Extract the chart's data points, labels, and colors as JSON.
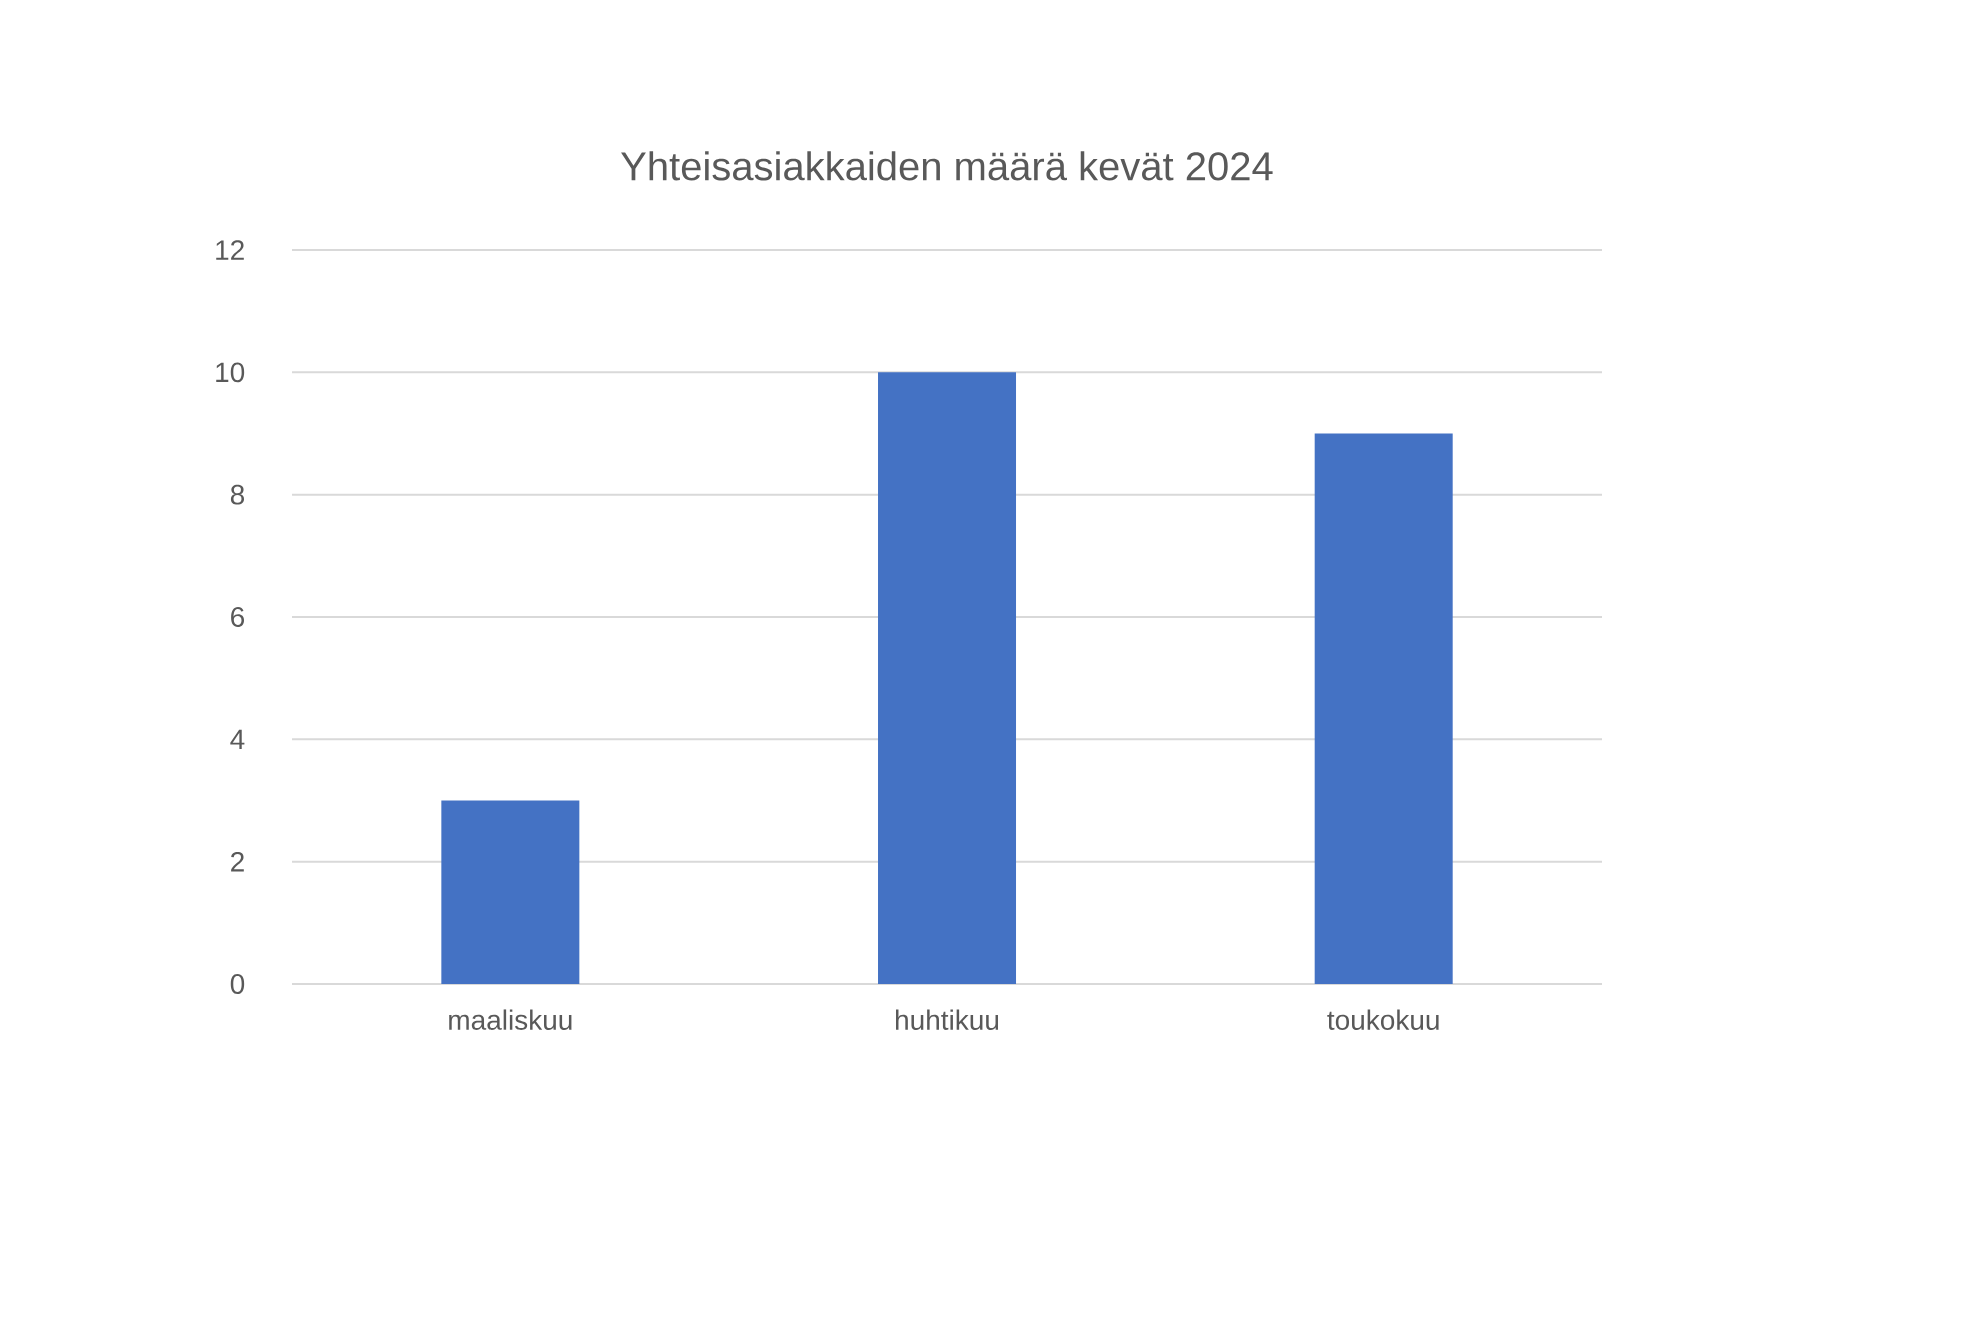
{
  "chart_data": {
    "type": "bar",
    "title": "Yhteisasiakkaiden määrä kevät 2024",
    "categories": [
      "maaliskuu",
      "huhtikuu",
      "toukokuu"
    ],
    "values": [
      3,
      10,
      9
    ],
    "color": "#4472c4",
    "ylim": [
      0,
      12
    ],
    "yticks": [
      0,
      2,
      4,
      6,
      8,
      10,
      12
    ],
    "grid": "y"
  }
}
